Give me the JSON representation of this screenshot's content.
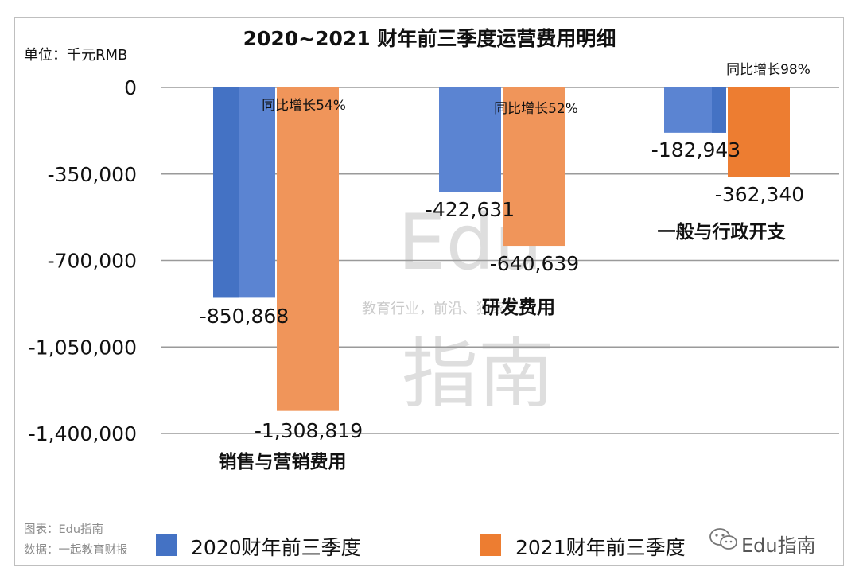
{
  "chart_data": {
    "type": "bar",
    "title": "2020~2021 财年前三季度运营费用明细",
    "unit_label": "单位：千元RMB",
    "categories": [
      "销售与营销费用",
      "研发费用",
      "一般与行政开支"
    ],
    "series": [
      {
        "name": "2020财年前三季度",
        "color": "#5b84d2",
        "values": [
          -850868,
          -422631,
          -182943
        ]
      },
      {
        "name": "2021财年前三季度",
        "color": "#f0955a",
        "values": [
          -1308819,
          -640639,
          -362340
        ]
      }
    ],
    "value_labels": [
      [
        "-850,868",
        "-422,631",
        "-182,943"
      ],
      [
        "-1,308,819",
        "-640,639",
        "-362,340"
      ]
    ],
    "growth_labels": [
      "同比增长54%",
      "同比增长52%",
      "同比增长98%"
    ],
    "y_ticks": [
      0,
      -350000,
      -700000,
      -1050000,
      -1400000
    ],
    "y_tick_labels": [
      "0",
      "-350,000",
      "-700,000",
      "-1,050,000",
      "-1,400,000"
    ],
    "ylim": [
      -1400000,
      0
    ],
    "grid": true,
    "legend_position": "bottom"
  },
  "footer": {
    "chart_source": "图表：Edu指南",
    "data_source": "数据：一起教育财报",
    "brand": "Edu指南"
  },
  "watermark": {
    "line1": "Edu",
    "line2": "教育行业，前沿、独家",
    "line3": "指南"
  },
  "colors": {
    "bar_2020_dark": "#4472c4",
    "bar_2021_dark": "#ed7d31",
    "grid": "#9a9a9a"
  }
}
